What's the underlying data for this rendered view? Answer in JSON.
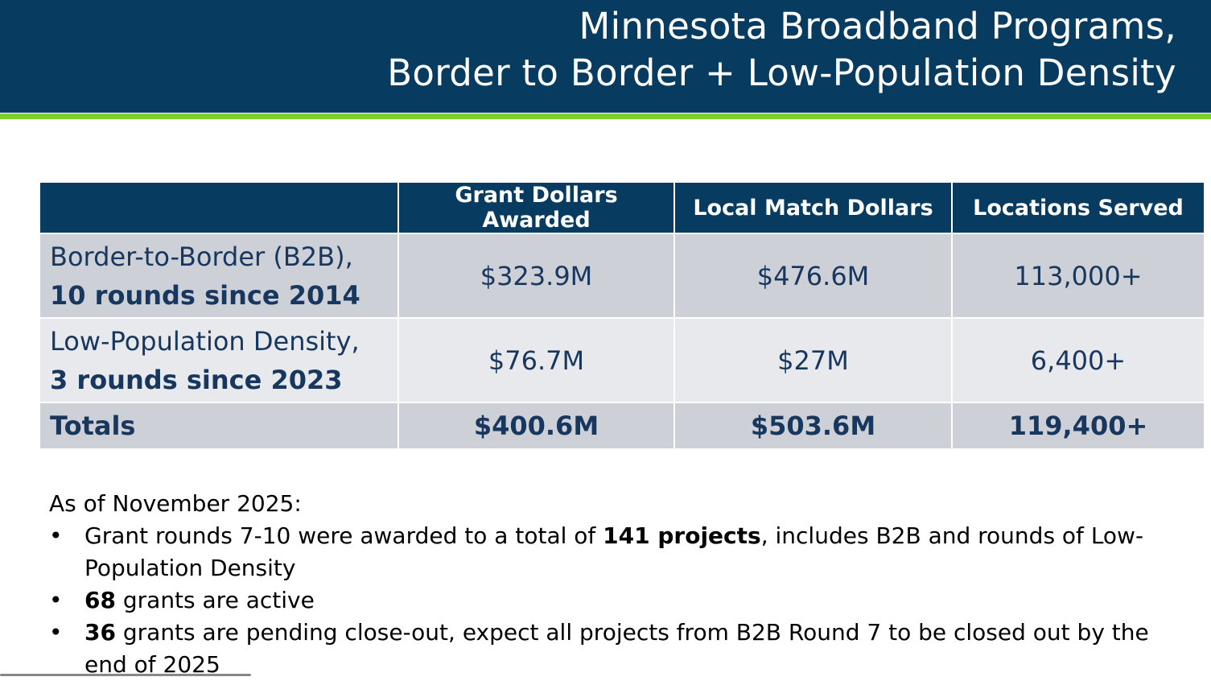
{
  "title": {
    "line1": "Minnesota Broadband Programs,",
    "line2": "Border to Border + Low-Population Density"
  },
  "table": {
    "headers": [
      "",
      "Grant Dollars Awarded",
      "Local Match Dollars",
      "Locations Served"
    ],
    "rows": [
      {
        "label1": "Border-to-Border (B2B),",
        "label2": "10 rounds since 2014",
        "grant": "$323.9M",
        "match": "$476.6M",
        "locations": "113,000+"
      },
      {
        "label1": "Low-Population Density,",
        "label2": "3 rounds since 2023",
        "grant": "$76.7M",
        "match": "$27M",
        "locations": "6,400+"
      }
    ],
    "totals": {
      "label": "Totals",
      "grant": "$400.6M",
      "match": "$503.6M",
      "locations": "119,400+"
    }
  },
  "notes": {
    "intro": "As of November 2025:",
    "bullet": "•",
    "items": [
      {
        "pre": "Grant rounds 7-10 were awarded to a total of ",
        "bold": "141 projects",
        "post": ", includes B2B and rounds of Low-Population Density"
      },
      {
        "pre": "",
        "bold": "68",
        "post": " grants are active"
      },
      {
        "pre": "",
        "bold": "36",
        "post": " grants are pending close-out, expect all projects from B2B Round 7 to be closed out by the end of 2025"
      }
    ]
  }
}
